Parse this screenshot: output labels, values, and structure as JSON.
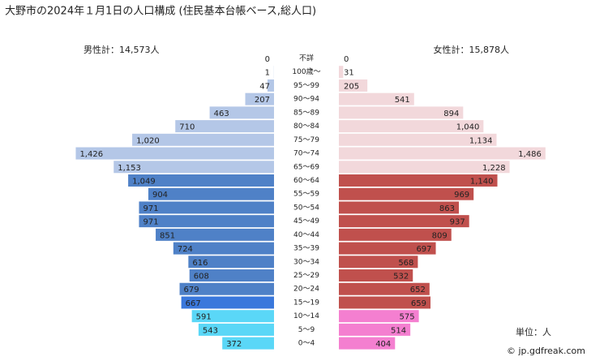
{
  "chart_data": {
    "type": "pyramid",
    "title": "大野市の2024年１月1日の人口構成 (住民基本台帳ベース,総人口)",
    "left_total": "男性計：14,573人",
    "right_total": "女性計：15,878人",
    "unit": "単位：人",
    "source": "© jp.gdfreak.com",
    "categories": [
      "不詳",
      "100歳～",
      "95～99",
      "90～94",
      "85～89",
      "80～84",
      "75～79",
      "70～74",
      "65～69",
      "60～64",
      "55～59",
      "50～54",
      "45～49",
      "40～44",
      "35～39",
      "30～34",
      "25～29",
      "20～24",
      "15～19",
      "10～14",
      "5～9",
      "0～4"
    ],
    "series": [
      {
        "name": "男性",
        "side": "left",
        "values": [
          0,
          1,
          47,
          207,
          463,
          710,
          1020,
          1426,
          1153,
          1049,
          904,
          971,
          971,
          851,
          724,
          616,
          608,
          679,
          667,
          591,
          543,
          372
        ],
        "value_labels": [
          "0",
          "1",
          "47",
          "207",
          "463",
          "710",
          "1,020",
          "1,426",
          "1,153",
          "1,049",
          "904",
          "971",
          "971",
          "851",
          "724",
          "616",
          "608",
          "679",
          "667",
          "591",
          "543",
          "372"
        ],
        "colors": [
          "#b4c7e7",
          "#b4c7e7",
          "#b4c7e7",
          "#b4c7e7",
          "#b4c7e7",
          "#b4c7e7",
          "#b4c7e7",
          "#b4c7e7",
          "#b4c7e7",
          "#4f81c7",
          "#4f81c7",
          "#4f81c7",
          "#4f81c7",
          "#4f81c7",
          "#4f81c7",
          "#4f81c7",
          "#4f81c7",
          "#4f81c7",
          "#3a78dc",
          "#5ad7f7",
          "#5ad7f7",
          "#5ad7f7"
        ]
      },
      {
        "name": "女性",
        "side": "right",
        "values": [
          0,
          31,
          205,
          541,
          894,
          1040,
          1134,
          1486,
          1228,
          1140,
          969,
          863,
          937,
          809,
          697,
          568,
          532,
          652,
          659,
          575,
          514,
          404
        ],
        "value_labels": [
          "0",
          "31",
          "205",
          "541",
          "894",
          "1,040",
          "1,134",
          "1,486",
          "1,228",
          "1,140",
          "969",
          "863",
          "937",
          "809",
          "697",
          "568",
          "532",
          "652",
          "659",
          "575",
          "514",
          "404"
        ],
        "colors": [
          "#f2d8db",
          "#f2d8db",
          "#f2d8db",
          "#f2d8db",
          "#f2d8db",
          "#f2d8db",
          "#f2d8db",
          "#f2d8db",
          "#f2d8db",
          "#c0504d",
          "#c0504d",
          "#c0504d",
          "#c0504d",
          "#c0504d",
          "#c0504d",
          "#c0504d",
          "#c0504d",
          "#c0504d",
          "#c0504d",
          "#f47fd0",
          "#f47fd0",
          "#f47fd0"
        ]
      }
    ]
  }
}
